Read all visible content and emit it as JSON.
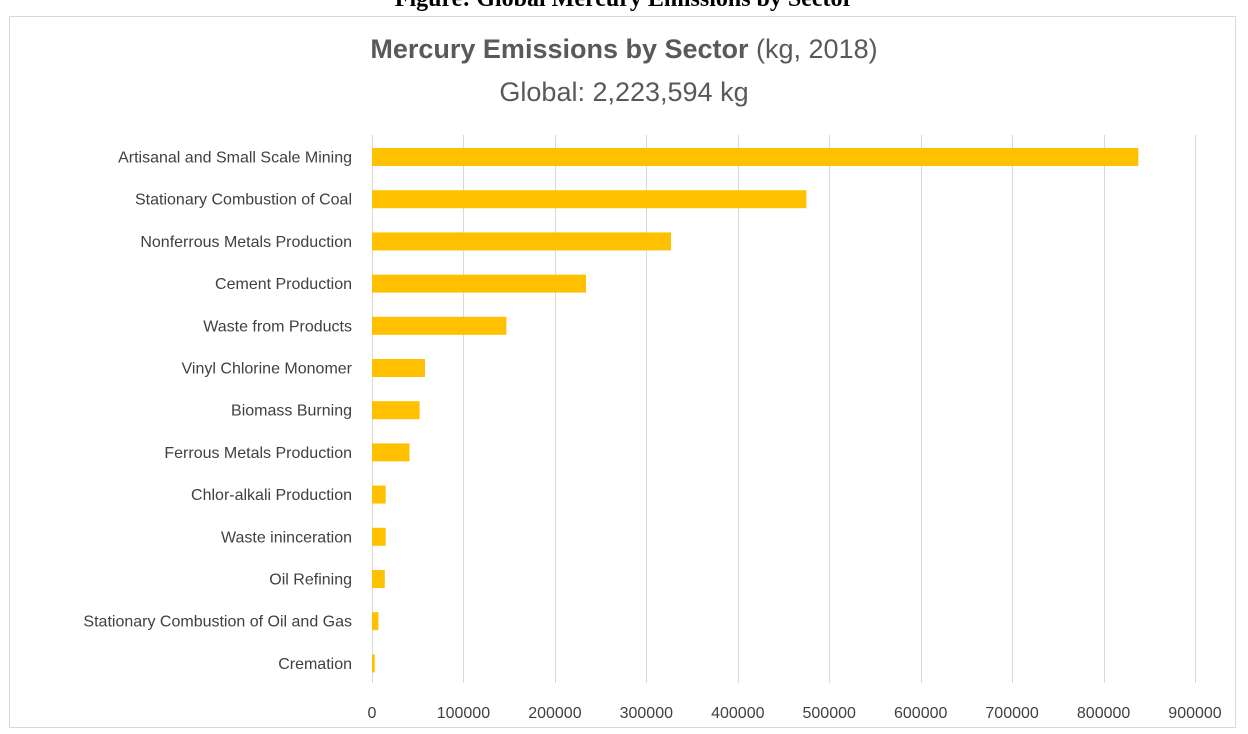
{
  "header": {
    "clipped_caption": "Figure: Global Mercury Emissions by Sector"
  },
  "chart_data": {
    "type": "bar",
    "orientation": "horizontal",
    "title_bold": "Mercury Emissions by Sector",
    "title_rest": " (kg, 2018)",
    "subtitle": "Global: 2,223,594 kg",
    "xlabel": "",
    "ylabel": "",
    "xlim": [
      0,
      900000
    ],
    "x_ticks": [
      0,
      100000,
      200000,
      300000,
      400000,
      500000,
      600000,
      700000,
      800000,
      900000
    ],
    "x_tick_labels": [
      "0",
      "100000",
      "200000",
      "300000",
      "400000",
      "500000",
      "600000",
      "700000",
      "800000",
      "900000"
    ],
    "grid": true,
    "legend": "none",
    "bar_color": "#FFC000",
    "categories": [
      "Artisanal and Small Scale Mining",
      "Stationary Combustion of Coal",
      "Nonferrous Metals Production",
      "Cement Production",
      "Waste from Products",
      "Vinyl Chlorine Monomer",
      "Biomass Burning",
      "Ferrous Metals Production",
      "Chlor-alkali Production",
      "Waste ininceration",
      "Oil Refining",
      "Stationary Combustion of Oil and Gas",
      "Cremation"
    ],
    "values": [
      838000,
      475000,
      327000,
      234000,
      147000,
      58000,
      52000,
      41000,
      15000,
      15000,
      14000,
      7000,
      3000
    ]
  }
}
